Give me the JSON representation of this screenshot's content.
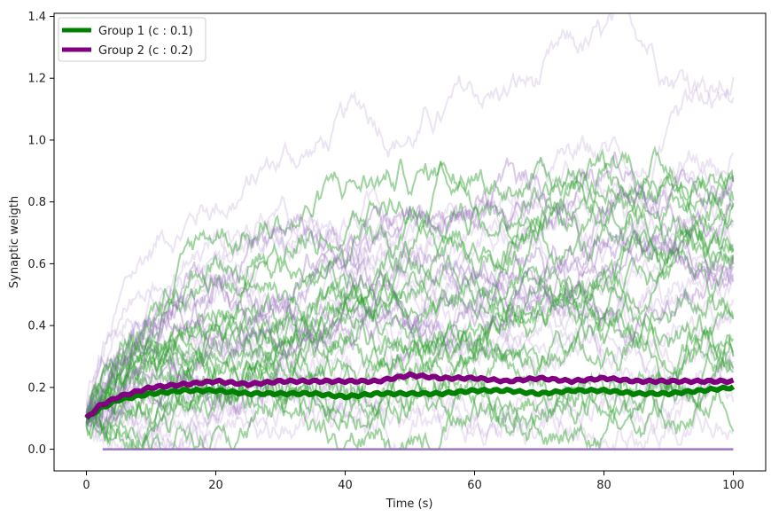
{
  "chart_data": {
    "type": "line",
    "title": "",
    "xlabel": "Time (s)",
    "ylabel": "Synaptic weigth",
    "xlim": [
      -5,
      105
    ],
    "ylim": [
      -0.07,
      1.41
    ],
    "xticks": [
      0,
      20,
      40,
      60,
      80,
      100
    ],
    "yticks": [
      0.0,
      0.2,
      0.4,
      0.6,
      0.8,
      1.0,
      1.2,
      1.4
    ],
    "xtick_labels": [
      "0",
      "20",
      "40",
      "60",
      "80",
      "100"
    ],
    "ytick_labels": [
      "0.0",
      "0.2",
      "0.4",
      "0.6",
      "0.8",
      "1.0",
      "1.2",
      "1.4"
    ],
    "grid": false,
    "legend_position": "top-left",
    "x": [
      0,
      2,
      5,
      10,
      15,
      20,
      25,
      30,
      35,
      40,
      45,
      50,
      55,
      60,
      65,
      70,
      75,
      80,
      85,
      90,
      95,
      100
    ],
    "series": [
      {
        "name": "Group 1 (c : 0.1)",
        "color": "#008000",
        "values": [
          0.1,
          0.13,
          0.16,
          0.18,
          0.19,
          0.19,
          0.18,
          0.18,
          0.18,
          0.17,
          0.18,
          0.18,
          0.18,
          0.19,
          0.19,
          0.18,
          0.19,
          0.19,
          0.18,
          0.18,
          0.19,
          0.2
        ]
      },
      {
        "name": "Group 2 (c : 0.2)",
        "color": "#800080",
        "values": [
          0.1,
          0.14,
          0.17,
          0.2,
          0.21,
          0.22,
          0.21,
          0.22,
          0.22,
          0.22,
          0.22,
          0.24,
          0.23,
          0.23,
          0.22,
          0.23,
          0.22,
          0.23,
          0.22,
          0.22,
          0.22,
          0.22
        ]
      }
    ],
    "trials": {
      "group1_color": "#2ca02c",
      "group2_color": "#9467bd",
      "group1_peaks": [
        1.08,
        0.95,
        0.88,
        0.82,
        0.75,
        0.7,
        0.62,
        0.58,
        0.52,
        0.45,
        0.4,
        0.35,
        0.3,
        0.26,
        0.2,
        0.15,
        1.02,
        0.55
      ],
      "group2_peaks": [
        1.33,
        1.1,
        0.95,
        0.85,
        0.78,
        0.7,
        0.62,
        0.55,
        0.48,
        0.42,
        0.36,
        0.3,
        0.24,
        0.18,
        0.12,
        0.6
      ],
      "zero_line_value": 0.0
    }
  }
}
